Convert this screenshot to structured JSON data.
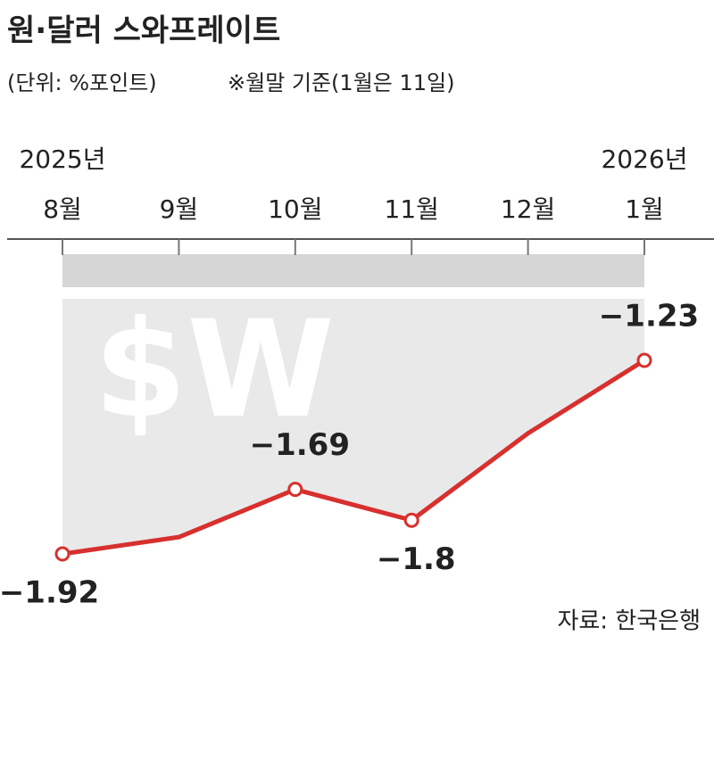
{
  "chart_data": {
    "type": "line",
    "title": "원·달러 스와프레이트",
    "subtitle": "(단위: %포인트)",
    "note": "※월말 기준(1월은 11일)",
    "source": "자료: 한국은행",
    "categories": [
      "8월",
      "9월",
      "10월",
      "11월",
      "12월",
      "1월"
    ],
    "years": [
      "2025년",
      null,
      null,
      null,
      null,
      "2026년"
    ],
    "series": [
      {
        "color": "#d7302e",
        "values": [
          -1.92,
          -1.86,
          -1.69,
          -1.8,
          -1.49,
          -1.23
        ],
        "value_labels": [
          "−1.92",
          null,
          "−1.69",
          "−1.8",
          null,
          "−1.23"
        ]
      }
    ]
  }
}
